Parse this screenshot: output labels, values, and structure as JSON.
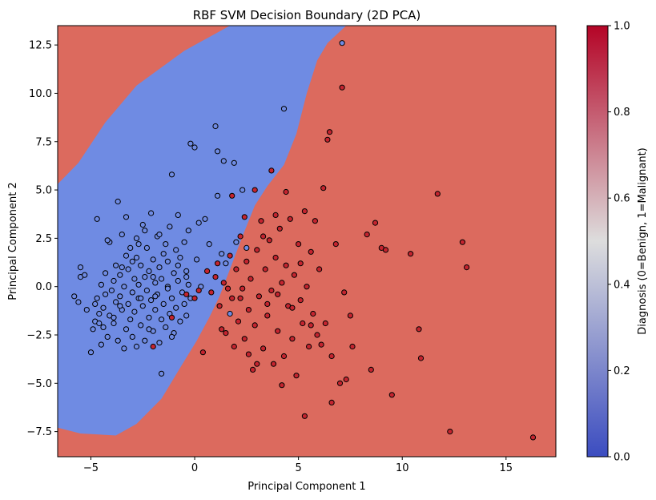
{
  "chart_data": {
    "type": "scatter",
    "title": "RBF SVM Decision Boundary (2D PCA)",
    "xlabel": "Principal Component 1",
    "ylabel": "Principal Component 2",
    "xlim": [
      -6.6,
      17.4
    ],
    "ylim": [
      -8.8,
      13.5
    ],
    "xticks": [
      -5,
      0,
      5,
      10,
      15
    ],
    "yticks": [
      -7.5,
      -5.0,
      -2.5,
      0.0,
      2.5,
      5.0,
      7.5,
      10.0,
      12.5
    ],
    "grid": false,
    "decision_regions": {
      "benign_color": "#6f8be3",
      "malignant_color": "#dc6a5e",
      "benign_region_polygon": [
        [
          -6.6,
          -7.3
        ],
        [
          -5.5,
          -7.6
        ],
        [
          -3.8,
          -7.7
        ],
        [
          -2.8,
          -7.1
        ],
        [
          -1.6,
          -5.8
        ],
        [
          -0.7,
          -4.2
        ],
        [
          0.1,
          -2.8
        ],
        [
          0.7,
          -1.6
        ],
        [
          1.2,
          -0.5
        ],
        [
          1.7,
          0.9
        ],
        [
          2.3,
          2.6
        ],
        [
          2.9,
          4.2
        ],
        [
          3.5,
          5.2
        ],
        [
          4.3,
          6.3
        ],
        [
          4.9,
          7.9
        ],
        [
          5.4,
          10.0
        ],
        [
          5.9,
          11.7
        ],
        [
          6.4,
          12.6
        ],
        [
          7.3,
          13.5
        ],
        [
          8.1,
          13.5
        ],
        [
          1.7,
          13.5
        ],
        [
          -0.5,
          12.2
        ],
        [
          -2.8,
          10.4
        ],
        [
          -4.3,
          8.5
        ],
        [
          -5.6,
          6.4
        ],
        [
          -6.6,
          5.3
        ]
      ]
    },
    "colorbar": {
      "label": "Diagnosis (0=Benign, 1=Malignant)",
      "min": 0.0,
      "max": 1.0,
      "ticks": [
        "0.0",
        "0.2",
        "0.4",
        "0.6",
        "0.8",
        "1.0"
      ],
      "low_color": "#3b4cc0",
      "mid_color": "#dddddd",
      "high_color": "#b40426"
    },
    "series": [
      {
        "color": "#6f8be3",
        "points": [
          [
            -5.8,
            -0.5
          ],
          [
            -5.6,
            -0.8
          ],
          [
            -5.5,
            1.0
          ],
          [
            -5.5,
            0.5
          ],
          [
            -5.3,
            0.6
          ],
          [
            -5.0,
            -3.4
          ],
          [
            -4.9,
            -2.2
          ],
          [
            -4.8,
            -1.8
          ],
          [
            -4.7,
            3.5
          ],
          [
            -4.7,
            -0.6
          ],
          [
            -4.6,
            -1.9
          ],
          [
            -4.5,
            -3.0
          ],
          [
            -4.5,
            0.1
          ],
          [
            -4.4,
            -1.1
          ],
          [
            -4.3,
            -0.4
          ],
          [
            -4.3,
            0.7
          ],
          [
            -4.2,
            -2.6
          ],
          [
            -4.1,
            2.3
          ],
          [
            -4.1,
            -1.5
          ],
          [
            -4.0,
            -0.2
          ],
          [
            -3.9,
            0.3
          ],
          [
            -3.9,
            -1.9
          ],
          [
            -3.8,
            -0.8
          ],
          [
            -3.8,
            1.1
          ],
          [
            -3.7,
            4.4
          ],
          [
            -3.7,
            -2.8
          ],
          [
            -3.6,
            -0.5
          ],
          [
            -3.6,
            0.6
          ],
          [
            -3.5,
            2.7
          ],
          [
            -3.5,
            -1.2
          ],
          [
            -3.4,
            -3.2
          ],
          [
            -3.4,
            0.0
          ],
          [
            -3.3,
            1.6
          ],
          [
            -3.3,
            -2.2
          ],
          [
            -3.2,
            -0.9
          ],
          [
            -3.2,
            0.9
          ],
          [
            -3.1,
            -1.7
          ],
          [
            -3.1,
            2.0
          ],
          [
            -3.0,
            -0.3
          ],
          [
            -3.0,
            -2.6
          ],
          [
            -2.9,
            0.4
          ],
          [
            -2.9,
            -1.3
          ],
          [
            -2.8,
            1.5
          ],
          [
            -2.8,
            -3.1
          ],
          [
            -2.8,
            2.5
          ],
          [
            -2.7,
            -0.6
          ],
          [
            -2.7,
            0.1
          ],
          [
            -2.6,
            -2.0
          ],
          [
            -2.6,
            1.1
          ],
          [
            -2.5,
            3.2
          ],
          [
            -2.5,
            -1.0
          ],
          [
            -2.4,
            0.5
          ],
          [
            -2.4,
            -2.8
          ],
          [
            -2.3,
            2.0
          ],
          [
            -2.3,
            -0.2
          ],
          [
            -2.2,
            -1.6
          ],
          [
            -2.2,
            0.8
          ],
          [
            -2.1,
            -0.7
          ],
          [
            -2.1,
            3.8
          ],
          [
            -2.0,
            1.4
          ],
          [
            -2.0,
            -2.3
          ],
          [
            -1.9,
            0.2
          ],
          [
            -1.9,
            -1.2
          ],
          [
            -1.8,
            2.6
          ],
          [
            -1.8,
            -0.4
          ],
          [
            -1.7,
            1.0
          ],
          [
            -1.7,
            -2.9
          ],
          [
            -1.6,
            0.4
          ],
          [
            -1.6,
            -1.7
          ],
          [
            -1.5,
            1.7
          ],
          [
            -1.5,
            -0.9
          ],
          [
            -1.4,
            2.2
          ],
          [
            -1.4,
            -2.1
          ],
          [
            -1.3,
            0.0
          ],
          [
            -1.3,
            1.3
          ],
          [
            -1.2,
            -1.4
          ],
          [
            -1.2,
            3.1
          ],
          [
            -1.1,
            -0.6
          ],
          [
            -1.1,
            5.8
          ],
          [
            -1.0,
            0.7
          ],
          [
            -1.0,
            -2.4
          ],
          [
            -0.9,
            1.9
          ],
          [
            -0.9,
            -1.1
          ],
          [
            -0.8,
            3.7
          ],
          [
            -0.8,
            0.3
          ],
          [
            -0.7,
            -1.8
          ],
          [
            -0.7,
            1.5
          ],
          [
            -0.6,
            -0.3
          ],
          [
            -0.5,
            2.3
          ],
          [
            -0.5,
            -0.9
          ],
          [
            -0.4,
            0.8
          ],
          [
            -0.4,
            -1.5
          ],
          [
            -0.3,
            2.9
          ],
          [
            -0.3,
            0.1
          ],
          [
            -0.2,
            7.4
          ],
          [
            -0.2,
            -0.6
          ],
          [
            0.0,
            7.2
          ],
          [
            0.1,
            1.4
          ],
          [
            0.2,
            3.3
          ],
          [
            0.3,
            0.0
          ],
          [
            0.5,
            3.5
          ],
          [
            0.7,
            2.2
          ],
          [
            1.0,
            8.3
          ],
          [
            1.1,
            7.0
          ],
          [
            1.3,
            1.7
          ],
          [
            1.4,
            6.5
          ],
          [
            1.5,
            1.2
          ],
          [
            1.7,
            -1.4
          ],
          [
            1.9,
            6.4
          ],
          [
            2.0,
            2.3
          ],
          [
            2.3,
            5.0
          ],
          [
            2.5,
            2.0
          ],
          [
            -1.6,
            -4.5
          ],
          [
            -4.2,
            2.4
          ],
          [
            -4.6,
            -1.4
          ],
          [
            -2.4,
            2.9
          ],
          [
            -3.3,
            3.6
          ],
          [
            -1.7,
            2.7
          ],
          [
            4.3,
            9.2
          ],
          [
            7.1,
            12.6
          ],
          [
            1.1,
            4.7
          ],
          [
            -2.7,
            2.2
          ],
          [
            -3.5,
            1.0
          ],
          [
            -3.9,
            -1.6
          ],
          [
            -2.2,
            -2.2
          ],
          [
            -1.3,
            -0.1
          ],
          [
            -0.8,
            1.1
          ],
          [
            -3.0,
            1.3
          ],
          [
            -2.6,
            -0.6
          ],
          [
            -1.9,
            -0.5
          ],
          [
            -4.4,
            -2.1
          ],
          [
            -2.0,
            0.5
          ],
          [
            -3.6,
            -1.0
          ],
          [
            -4.8,
            -0.9
          ],
          [
            -5.2,
            -1.2
          ],
          [
            -1.1,
            -2.6
          ],
          [
            -0.4,
            0.5
          ]
        ]
      },
      {
        "color": "#c4242f",
        "points": [
          [
            0.6,
            0.8
          ],
          [
            0.8,
            -0.3
          ],
          [
            1.0,
            0.5
          ],
          [
            1.2,
            -1.0
          ],
          [
            1.4,
            0.2
          ],
          [
            1.5,
            -2.4
          ],
          [
            1.7,
            1.6
          ],
          [
            1.8,
            -0.6
          ],
          [
            1.9,
            -3.1
          ],
          [
            2.0,
            0.9
          ],
          [
            2.1,
            -1.8
          ],
          [
            2.2,
            2.6
          ],
          [
            2.3,
            -0.1
          ],
          [
            2.4,
            -2.7
          ],
          [
            2.5,
            1.3
          ],
          [
            2.6,
            -1.2
          ],
          [
            2.7,
            0.4
          ],
          [
            2.8,
            -4.3
          ],
          [
            2.9,
            -2.0
          ],
          [
            3.0,
            1.9
          ],
          [
            3.1,
            -0.5
          ],
          [
            3.2,
            3.4
          ],
          [
            3.3,
            -3.2
          ],
          [
            3.4,
            0.9
          ],
          [
            3.5,
            -1.5
          ],
          [
            3.6,
            2.4
          ],
          [
            3.7,
            -0.2
          ],
          [
            3.8,
            -4.0
          ],
          [
            3.9,
            1.5
          ],
          [
            4.0,
            -2.3
          ],
          [
            4.1,
            3.0
          ],
          [
            4.2,
            0.2
          ],
          [
            4.3,
            -3.6
          ],
          [
            4.4,
            1.1
          ],
          [
            4.5,
            -1.0
          ],
          [
            4.6,
            3.5
          ],
          [
            4.7,
            -2.7
          ],
          [
            4.8,
            0.6
          ],
          [
            4.9,
            -4.6
          ],
          [
            5.0,
            2.2
          ],
          [
            5.1,
            -0.7
          ],
          [
            5.2,
            -1.9
          ],
          [
            5.3,
            3.9
          ],
          [
            5.4,
            0.0
          ],
          [
            5.5,
            -3.1
          ],
          [
            5.6,
            1.8
          ],
          [
            5.7,
            -1.4
          ],
          [
            5.8,
            3.4
          ],
          [
            5.9,
            -2.5
          ],
          [
            6.0,
            0.9
          ],
          [
            6.2,
            5.1
          ],
          [
            6.3,
            -1.9
          ],
          [
            6.4,
            7.6
          ],
          [
            6.5,
            8.0
          ],
          [
            6.6,
            -3.6
          ],
          [
            6.8,
            2.2
          ],
          [
            7.0,
            -5.0
          ],
          [
            7.1,
            10.3
          ],
          [
            7.2,
            -0.3
          ],
          [
            7.3,
            -4.8
          ],
          [
            7.5,
            -1.5
          ],
          [
            7.6,
            -3.1
          ],
          [
            8.3,
            2.7
          ],
          [
            8.5,
            -4.3
          ],
          [
            8.7,
            3.3
          ],
          [
            9.0,
            2.0
          ],
          [
            9.2,
            1.9
          ],
          [
            9.5,
            -5.6
          ],
          [
            10.4,
            1.7
          ],
          [
            10.8,
            -2.2
          ],
          [
            10.9,
            -3.7
          ],
          [
            11.7,
            4.8
          ],
          [
            12.3,
            -7.5
          ],
          [
            12.9,
            2.3
          ],
          [
            13.1,
            1.0
          ],
          [
            16.3,
            -7.8
          ],
          [
            5.3,
            -6.7
          ],
          [
            6.6,
            -6.0
          ],
          [
            4.2,
            -5.1
          ],
          [
            3.0,
            -4.0
          ],
          [
            2.6,
            -3.5
          ],
          [
            1.3,
            -2.2
          ],
          [
            0.4,
            -3.4
          ],
          [
            -2.0,
            -3.1
          ],
          [
            -1.1,
            -1.6
          ],
          [
            0.2,
            -0.2
          ],
          [
            0.0,
            -0.6
          ],
          [
            -0.4,
            -0.4
          ],
          [
            6.1,
            -3.0
          ],
          [
            5.1,
            1.2
          ],
          [
            3.9,
            3.7
          ],
          [
            4.4,
            4.9
          ],
          [
            3.7,
            6.0
          ],
          [
            2.9,
            5.0
          ],
          [
            2.4,
            3.6
          ],
          [
            1.8,
            4.7
          ],
          [
            3.3,
            2.6
          ],
          [
            4.7,
            -1.1
          ],
          [
            3.5,
            -0.9
          ],
          [
            2.2,
            -0.6
          ],
          [
            1.6,
            -0.1
          ],
          [
            1.1,
            1.2
          ],
          [
            4.0,
            -0.4
          ],
          [
            5.6,
            -2.0
          ]
        ]
      }
    ]
  }
}
